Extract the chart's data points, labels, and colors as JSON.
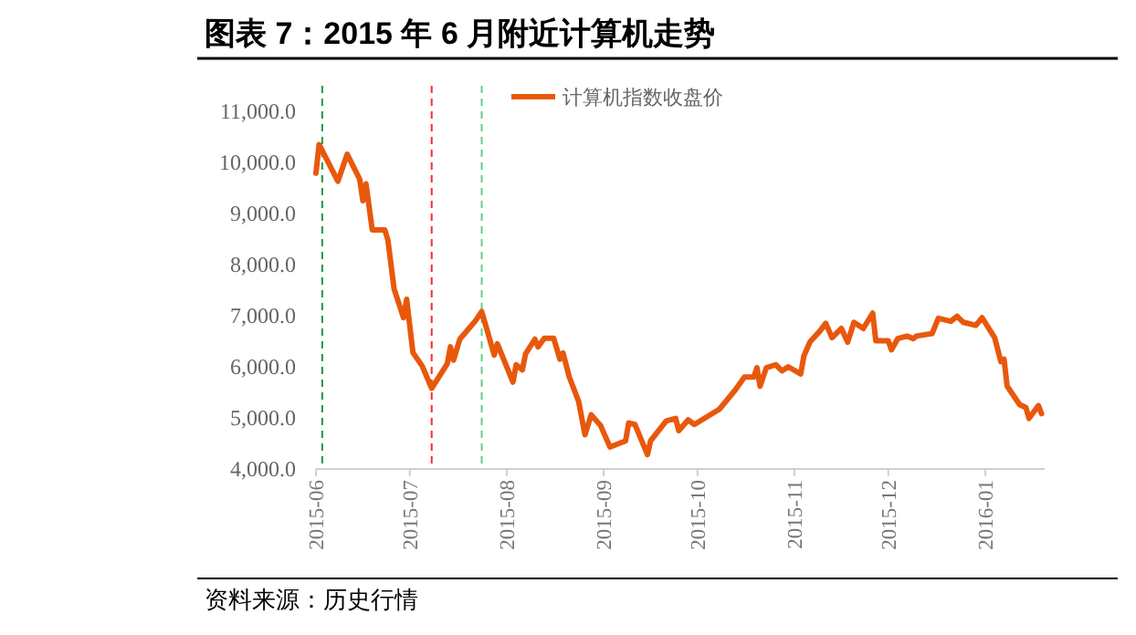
{
  "chart_data": {
    "type": "line",
    "title": "图表 7：2015 年 6 月附近计算机走势",
    "annotations": [
      "资料来源：历史行情"
    ],
    "x": [
      "2015-06-01",
      "2015-06-02",
      "2015-06-08",
      "2015-06-11",
      "2015-06-15",
      "2015-06-16",
      "2015-06-17",
      "2015-06-19",
      "2015-06-23",
      "2015-06-24",
      "2015-06-26",
      "2015-06-29",
      "2015-06-30",
      "2015-07-02",
      "2015-07-05",
      "2015-07-08",
      "2015-07-13",
      "2015-07-14",
      "2015-07-15",
      "2015-07-17",
      "2015-07-22",
      "2015-07-24",
      "2015-07-28",
      "2015-07-29",
      "2015-08-03",
      "2015-08-04",
      "2015-08-06",
      "2015-08-07",
      "2015-08-10",
      "2015-08-11",
      "2015-08-13",
      "2015-08-16",
      "2015-08-18",
      "2015-08-19",
      "2015-08-21",
      "2015-08-24",
      "2015-08-26",
      "2015-08-28",
      "2015-08-31",
      "2015-09-03",
      "2015-09-08",
      "2015-09-09",
      "2015-09-11",
      "2015-09-15",
      "2015-09-16",
      "2015-09-21",
      "2015-09-24",
      "2015-09-25",
      "2015-09-28",
      "2015-09-30",
      "2015-10-08",
      "2015-10-13",
      "2015-10-16",
      "2015-10-19",
      "2015-10-20",
      "2015-10-21",
      "2015-10-23",
      "2015-10-26",
      "2015-10-28",
      "2015-10-30",
      "2015-11-03",
      "2015-11-04",
      "2015-11-06",
      "2015-11-09",
      "2015-11-11",
      "2015-11-13",
      "2015-11-16",
      "2015-11-18",
      "2015-11-20",
      "2015-11-23",
      "2015-11-26",
      "2015-11-27",
      "2015-12-01",
      "2015-12-02",
      "2015-12-04",
      "2015-12-07",
      "2015-12-09",
      "2015-12-10",
      "2015-12-15",
      "2015-12-17",
      "2015-12-21",
      "2015-12-23",
      "2015-12-25",
      "2015-12-29",
      "2015-12-31",
      "2016-01-04",
      "2016-01-06",
      "2016-01-07",
      "2016-01-08",
      "2016-01-12",
      "2016-01-14",
      "2016-01-15",
      "2016-01-18",
      "2016-01-19"
    ],
    "series": [
      {
        "name": "计算机指数收盘价",
        "color": "#e8580c",
        "values": [
          9790,
          10350,
          9630,
          10160,
          9670,
          9250,
          9580,
          8680,
          8680,
          8480,
          7520,
          6960,
          7320,
          6280,
          6010,
          5580,
          6060,
          6390,
          6130,
          6540,
          6900,
          7080,
          6230,
          6450,
          5700,
          6040,
          5940,
          6250,
          6540,
          6390,
          6560,
          6560,
          6150,
          6270,
          5800,
          5320,
          4670,
          5060,
          4850,
          4430,
          4550,
          4900,
          4870,
          4280,
          4550,
          4940,
          4990,
          4750,
          4960,
          4870,
          5170,
          5540,
          5800,
          5800,
          5980,
          5620,
          5980,
          6040,
          5920,
          6000,
          5860,
          6210,
          6490,
          6690,
          6850,
          6570,
          6750,
          6480,
          6870,
          6750,
          7050,
          6510,
          6510,
          6330,
          6550,
          6600,
          6550,
          6600,
          6650,
          6950,
          6890,
          6990,
          6870,
          6810,
          6960,
          6570,
          6100,
          6150,
          5620,
          5260,
          5200,
          4990,
          5240,
          5080
        ]
      }
    ],
    "xlim": [
      "2015-06-01",
      "2016-01-20"
    ],
    "xticks": [
      {
        "value": "2015-06-01",
        "label": "2015-06"
      },
      {
        "value": "2015-07-01",
        "label": "2015-07"
      },
      {
        "value": "2015-08-01",
        "label": "2015-08"
      },
      {
        "value": "2015-09-01",
        "label": "2015-09"
      },
      {
        "value": "2015-10-01",
        "label": "2015-10"
      },
      {
        "value": "2015-11-01",
        "label": "2015-11"
      },
      {
        "value": "2015-12-01",
        "label": "2015-12"
      },
      {
        "value": "2016-01-01",
        "label": "2016-01"
      }
    ],
    "ylim": [
      4000,
      11000
    ],
    "yticks": [
      {
        "value": 4000,
        "label": "4,000.0"
      },
      {
        "value": 5000,
        "label": "5,000.0"
      },
      {
        "value": 6000,
        "label": "6,000.0"
      },
      {
        "value": 7000,
        "label": "7,000.0"
      },
      {
        "value": 8000,
        "label": "8,000.0"
      },
      {
        "value": 9000,
        "label": "9,000.0"
      },
      {
        "value": 10000,
        "label": "10,000.0"
      },
      {
        "value": 11000,
        "label": "11,000.0"
      }
    ],
    "ref_lines": [
      {
        "axis": "x",
        "value": "2015-06-03",
        "color": "#1a9641",
        "line_style": "dashed"
      },
      {
        "axis": "x",
        "value": "2015-07-08",
        "color": "#ff2a2a",
        "line_style": "dashed"
      },
      {
        "axis": "x",
        "value": "2015-07-24",
        "color": "#5fd08a",
        "line_style": "dashed"
      }
    ],
    "legend": "top",
    "grid": false,
    "marker": "none",
    "line_style": "solid"
  }
}
